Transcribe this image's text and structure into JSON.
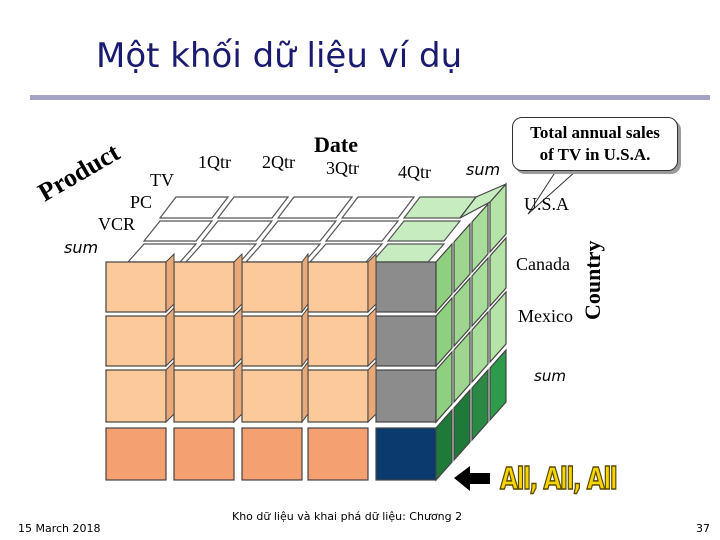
{
  "slide": {
    "title": "Một khối dữ liệu ví dụ",
    "footer_date": "15 March 2018",
    "footer_center": "Kho dữ liệu và khai phá dữ liệu: Chương 2",
    "page_number": "37"
  },
  "cube": {
    "date_axis_label": "Date",
    "date_members": [
      "1Qtr",
      "2Qtr",
      "3Qtr",
      "4Qtr",
      "sum"
    ],
    "product_axis_label": "Product",
    "product_members": [
      "TV",
      "PC",
      "VCR",
      "sum"
    ],
    "country_axis_label": "Country",
    "country_members": [
      "U.S.A",
      "Canada",
      "Mexico",
      "sum"
    ]
  },
  "callout": {
    "line1": "Total annual sales",
    "line2": "of  TV in U.S.A."
  },
  "all_label": "All, All, All",
  "colors": {
    "title": "#1a1a6e",
    "peach": "#fcc99b",
    "peach_dark": "#f4a070",
    "gray": "#8c8c8c",
    "gray_light": "#a8a8a8",
    "navy": "#0b3a6e",
    "green_light": "#c6ecc0",
    "green": "#7fbf70",
    "green_dark": "#1f7a3a"
  }
}
